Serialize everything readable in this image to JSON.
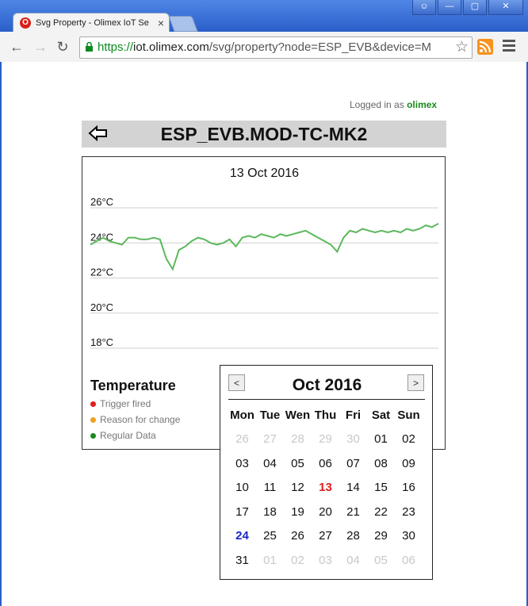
{
  "browser": {
    "tab_title": "Svg Property - Olimex IoT Se",
    "url_scheme": "https://",
    "url_host": "iot.olimex.com",
    "url_path": "/svg/property?node=ESP_EVB&device=M"
  },
  "page": {
    "logged_in_prefix": "Logged in as",
    "username": "olimex",
    "device_title": "ESP_EVB.MOD-TC-MK2",
    "chart_date": "13 Oct 2016"
  },
  "legend": {
    "title": "Temperature",
    "items": [
      {
        "label": "Trigger fired",
        "color": "#e01e1e"
      },
      {
        "label": "Reason for change",
        "color": "#f0a020"
      },
      {
        "label": "Regular Data",
        "color": "#1a8a1a"
      }
    ]
  },
  "chart_data": {
    "type": "line",
    "ylim": [
      17.5,
      26.5
    ],
    "y_ticks": [
      "26°C",
      "24°C",
      "22°C",
      "20°C",
      "18°C"
    ],
    "y_tick_values": [
      26,
      24,
      22,
      20,
      18
    ],
    "line_color": "#5cb85c",
    "series": [
      {
        "values": [
          23.9,
          24.1,
          24.3,
          24.1,
          24.0,
          23.9,
          24.3,
          24.3,
          24.2,
          24.2,
          24.3,
          24.2,
          23.1,
          22.5,
          23.6,
          23.8,
          24.1,
          24.3,
          24.2,
          24.0,
          23.9,
          24.0,
          24.2,
          23.8,
          24.3,
          24.4,
          24.3,
          24.5,
          24.4,
          24.3,
          24.5,
          24.4,
          24.5,
          24.6,
          24.7,
          24.5,
          24.3,
          24.1,
          23.9,
          23.5,
          24.3,
          24.7,
          24.6,
          24.8,
          24.7,
          24.6,
          24.7,
          24.6,
          24.7,
          24.6,
          24.8,
          24.7,
          24.8,
          25.0,
          24.9,
          25.1
        ]
      }
    ]
  },
  "calendar": {
    "prev_label": "<",
    "next_label": ">",
    "month_label": "Oct 2016",
    "weekdays": [
      "Mon",
      "Tue",
      "Wen",
      "Thu",
      "Fri",
      "Sat",
      "Sun"
    ],
    "weeks": [
      [
        {
          "d": "26",
          "m": true
        },
        {
          "d": "27",
          "m": true
        },
        {
          "d": "28",
          "m": true
        },
        {
          "d": "29",
          "m": true
        },
        {
          "d": "30",
          "m": true
        },
        {
          "d": "01"
        },
        {
          "d": "02"
        }
      ],
      [
        {
          "d": "03"
        },
        {
          "d": "04"
        },
        {
          "d": "05"
        },
        {
          "d": "06"
        },
        {
          "d": "07"
        },
        {
          "d": "08"
        },
        {
          "d": "09"
        }
      ],
      [
        {
          "d": "10"
        },
        {
          "d": "11"
        },
        {
          "d": "12"
        },
        {
          "d": "13",
          "t": true
        },
        {
          "d": "14"
        },
        {
          "d": "15"
        },
        {
          "d": "16"
        }
      ],
      [
        {
          "d": "17"
        },
        {
          "d": "18"
        },
        {
          "d": "19"
        },
        {
          "d": "20"
        },
        {
          "d": "21"
        },
        {
          "d": "22"
        },
        {
          "d": "23"
        }
      ],
      [
        {
          "d": "24",
          "s": true
        },
        {
          "d": "25"
        },
        {
          "d": "26"
        },
        {
          "d": "27"
        },
        {
          "d": "28"
        },
        {
          "d": "29"
        },
        {
          "d": "30"
        }
      ],
      [
        {
          "d": "31"
        },
        {
          "d": "01",
          "m": true
        },
        {
          "d": "02",
          "m": true
        },
        {
          "d": "03",
          "m": true
        },
        {
          "d": "04",
          "m": true
        },
        {
          "d": "05",
          "m": true
        },
        {
          "d": "06",
          "m": true
        }
      ]
    ]
  }
}
